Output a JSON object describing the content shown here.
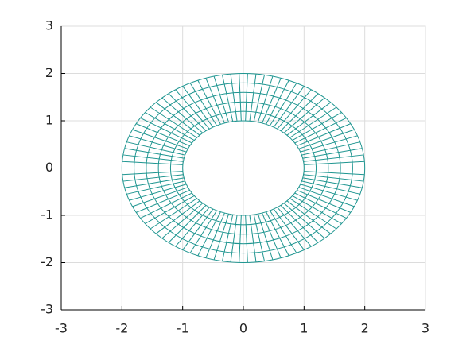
{
  "chart_data": {
    "type": "polar-mesh",
    "color": "#1e9590",
    "r": [
      1,
      1.2,
      1.4,
      1.6,
      1.8,
      2
    ],
    "theta_deg": [
      0,
      4,
      8,
      12,
      16,
      20,
      24,
      28,
      32,
      36,
      40,
      44,
      48,
      52,
      56,
      60,
      64,
      68,
      72,
      76,
      80,
      84,
      88,
      92,
      96,
      100,
      104,
      108,
      112,
      116,
      120,
      124,
      128,
      132,
      136,
      140,
      144,
      148,
      152,
      156,
      160,
      164,
      168,
      172,
      176,
      180,
      184,
      188,
      192,
      196,
      200,
      204,
      208,
      212,
      216,
      220,
      224,
      228,
      232,
      236,
      240,
      244,
      248,
      252,
      256,
      260,
      264,
      268,
      272,
      276,
      280,
      284,
      288,
      292,
      296,
      300,
      304,
      308,
      312,
      316,
      320,
      324,
      328,
      332,
      336,
      340,
      344,
      348,
      352,
      356
    ],
    "xlim": [
      -3,
      3
    ],
    "ylim": [
      -3,
      3
    ],
    "xticks": [
      -3,
      -2,
      -1,
      0,
      1,
      2,
      3
    ],
    "yticks": [
      -3,
      -2,
      -1,
      0,
      1,
      2,
      3
    ],
    "grid": true
  }
}
